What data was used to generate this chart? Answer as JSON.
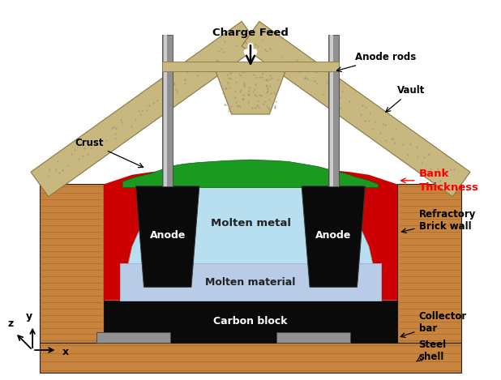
{
  "bg_color": "#ffffff",
  "wood_color": "#c8843c",
  "wood_dark": "#8a5a20",
  "steel_color": "#909090",
  "carbon_color": "#0a0a0a",
  "red_color": "#cc0000",
  "green_color": "#1a9a20",
  "molten_metal_color": "#b8dff0",
  "molten_bath_color": "#b0c8e8",
  "anode_color": "#0a0a0a",
  "vault_color": "#c8b880",
  "vault_dark": "#a09060",
  "rod_color": "#909090",
  "rod_dark": "#606060",
  "hopper_color": "#c8b880",
  "labels": {
    "charge_feed": "Charge Feed",
    "anode_rods": "Anode rods",
    "vault": "Vault",
    "crust": "Crust",
    "anode": "Anode",
    "molten_metal": "Molten metal",
    "molten_material": "Molten material",
    "carbon_block": "Carbon block",
    "bank_thickness_1": "Bank",
    "bank_thickness_2": "Thickness",
    "refractory": "Refractory\nBrick wall",
    "collector_bar": "Collector\nbar",
    "steel_shell": "Steel\nshell"
  }
}
